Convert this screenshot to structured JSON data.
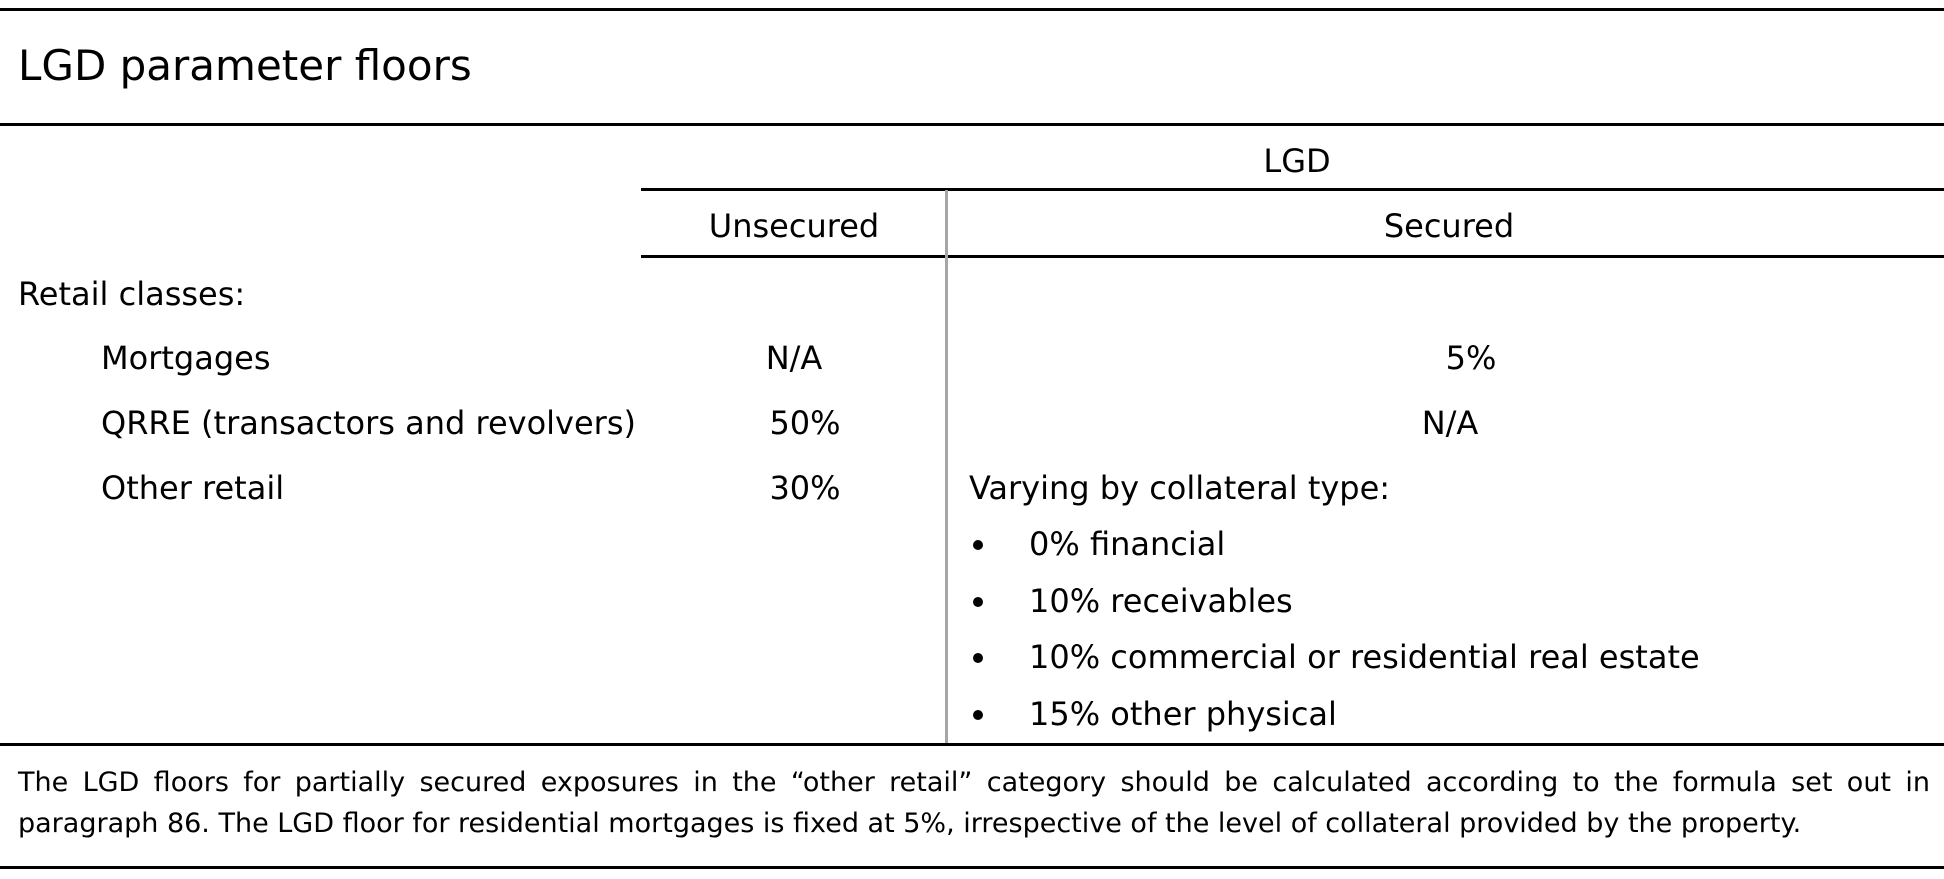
{
  "title": "LGD parameter floors",
  "header": {
    "group": "LGD",
    "unsecured": "Unsecured",
    "secured": "Secured"
  },
  "section_label": "Retail classes:",
  "rows": [
    {
      "label": "Mortgages",
      "unsecured": "N/A",
      "secured": "5%"
    },
    {
      "label": "QRRE (transactors and revolvers)",
      "unsecured": "50%",
      "secured": "N/A"
    },
    {
      "label": "Other retail",
      "unsecured": "30%",
      "secured": "Varying by collateral type:"
    }
  ],
  "collateral_items": [
    "0% financial",
    "10% receivables",
    "10% commercial or residential real estate",
    "15% other physical"
  ],
  "footnote": "The LGD floors for partially secured exposures in the “other retail” category should be calculated according to the formula set out in paragraph 86. The LGD floor for residential mortgages is fixed at 5%, irrespective of the level of collateral provided by the property."
}
